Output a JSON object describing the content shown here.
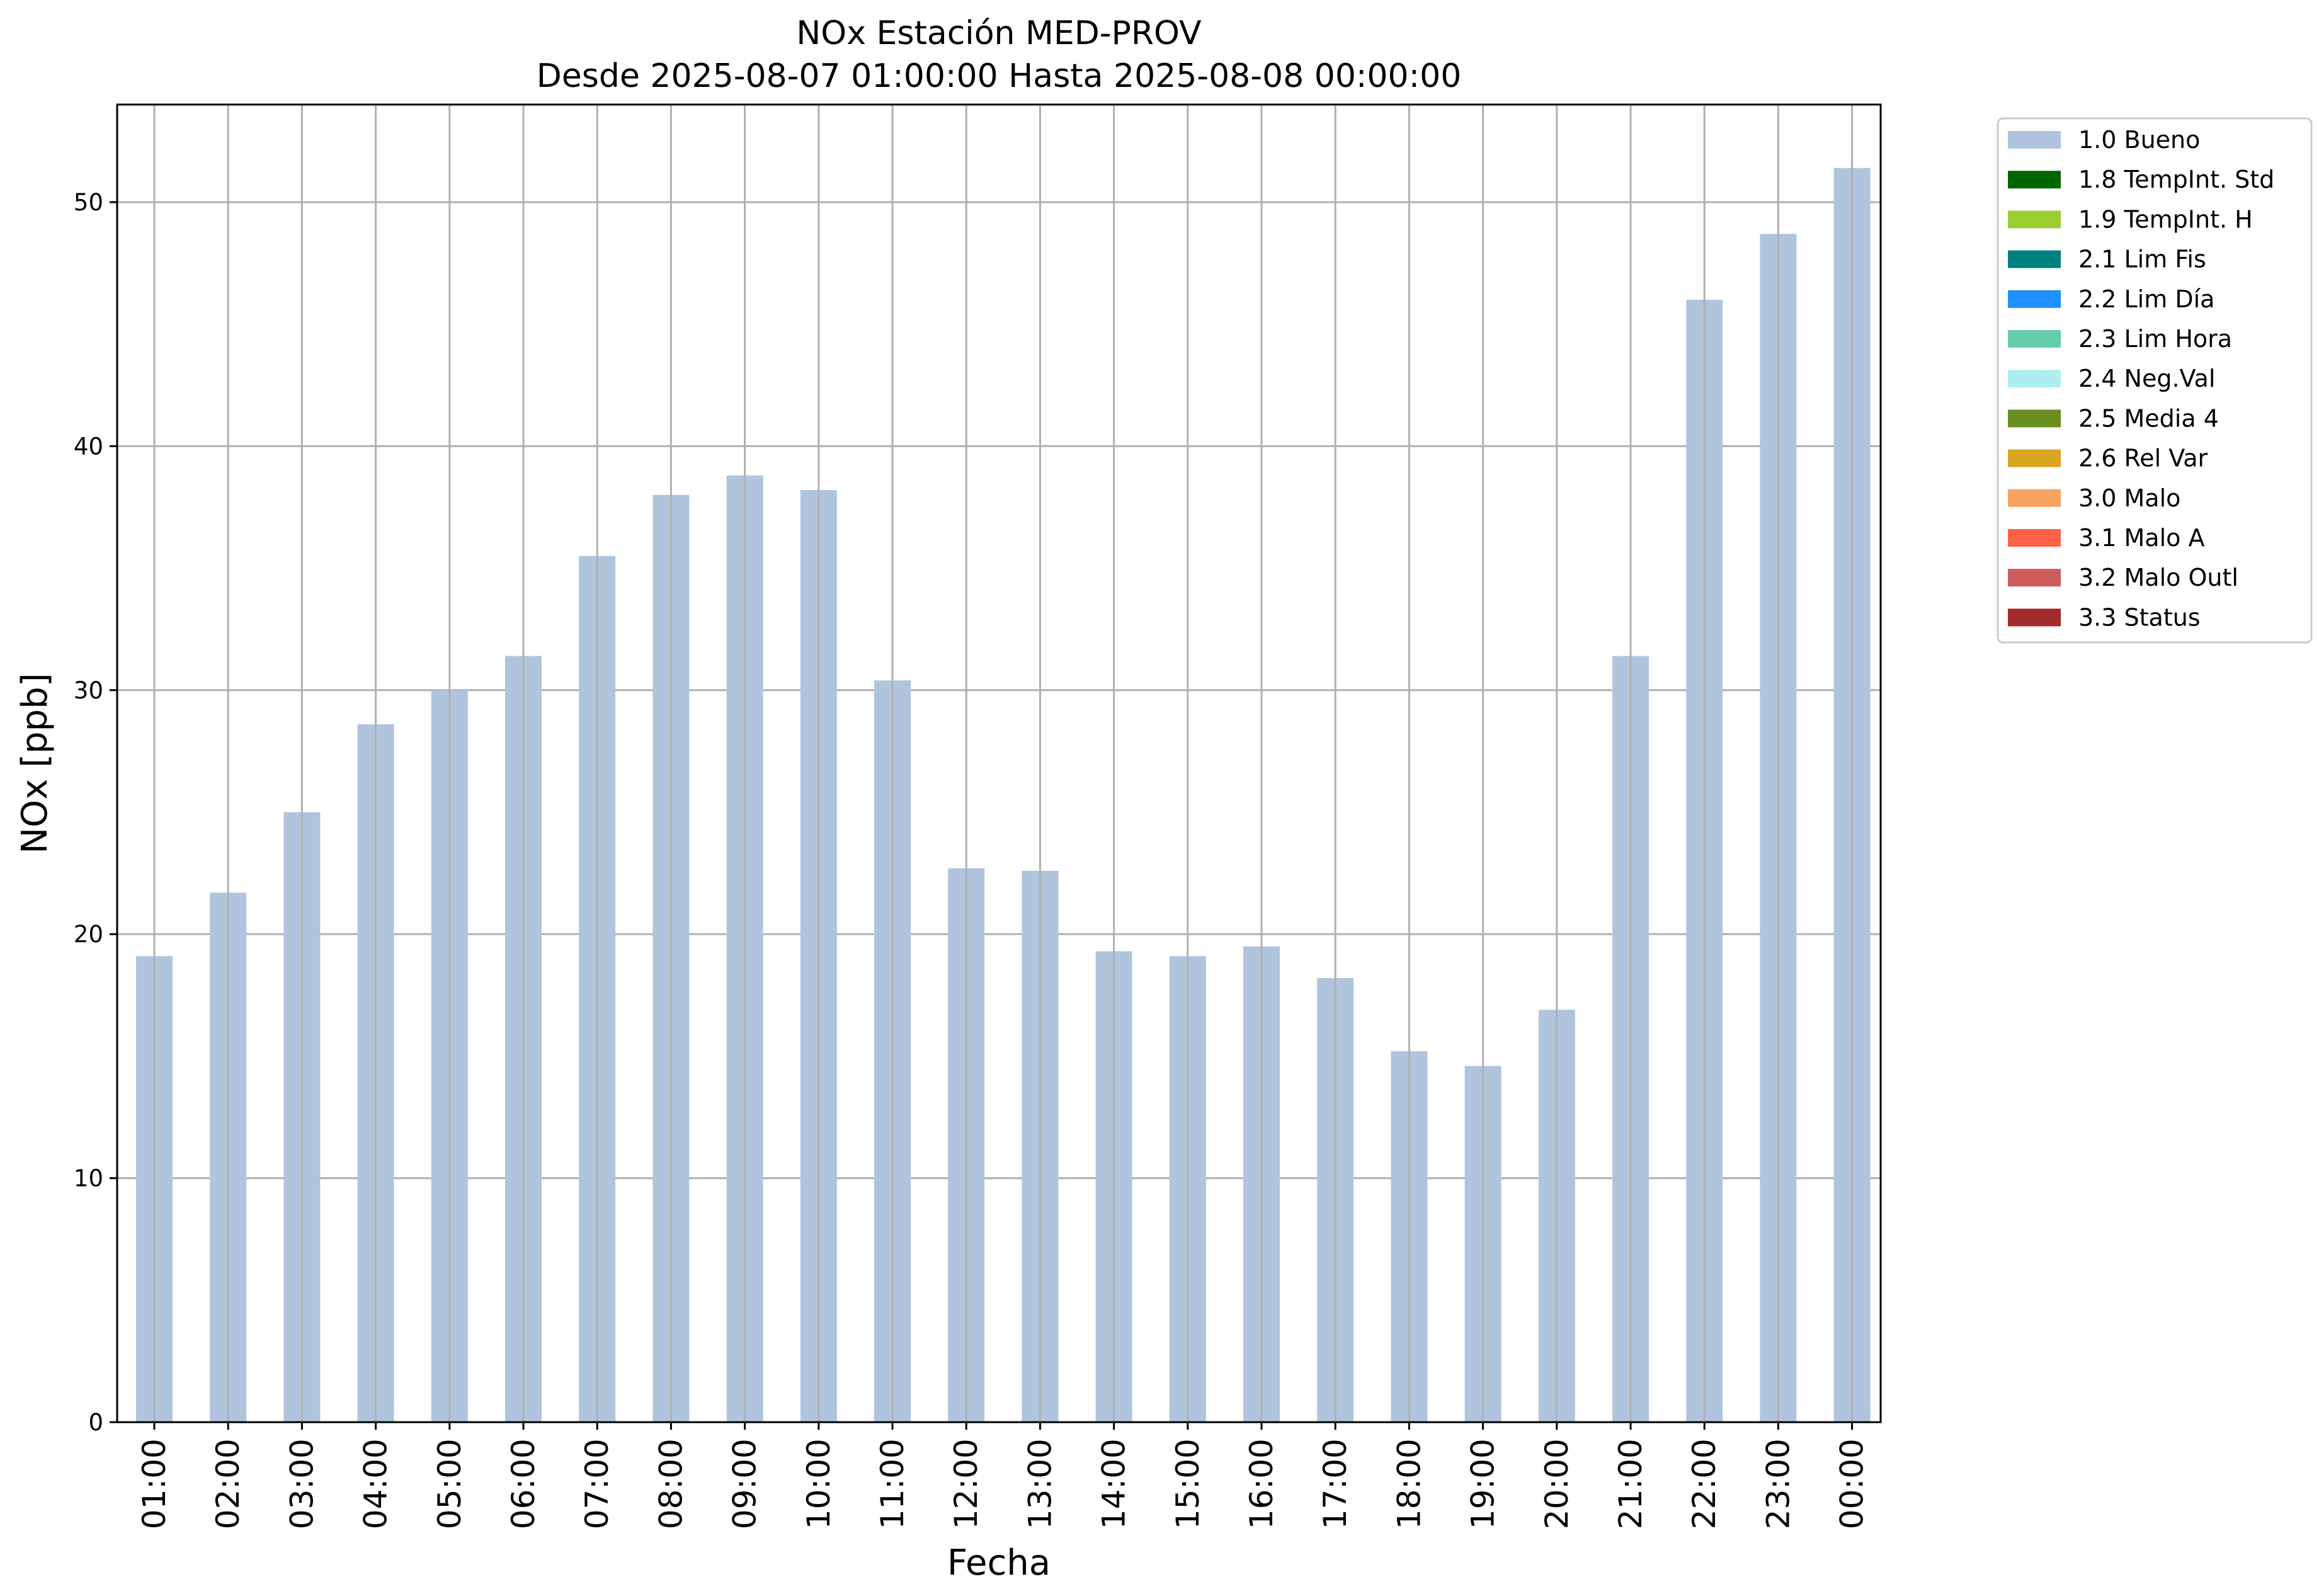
{
  "chart_data": {
    "type": "bar",
    "title": "NOx Estación MED-PROV",
    "subtitle": "Desde 2025-08-07 01:00:00 Hasta 2025-08-08 00:00:00",
    "xlabel": "Fecha",
    "ylabel": "NOx [ppb]",
    "ylim": [
      0,
      54
    ],
    "yticks": [
      0,
      10,
      20,
      30,
      40,
      50
    ],
    "grid": true,
    "legend_position": "outside-right-top",
    "categories": [
      "01:00",
      "02:00",
      "03:00",
      "04:00",
      "05:00",
      "06:00",
      "07:00",
      "08:00",
      "09:00",
      "10:00",
      "11:00",
      "12:00",
      "13:00",
      "14:00",
      "15:00",
      "16:00",
      "17:00",
      "18:00",
      "19:00",
      "20:00",
      "21:00",
      "22:00",
      "23:00",
      "00:00"
    ],
    "series": [
      {
        "name": "1.0 Bueno",
        "color": "#b0c4de",
        "values": [
          19.1,
          21.7,
          25.0,
          28.6,
          30.0,
          31.4,
          35.5,
          38.0,
          38.8,
          38.2,
          30.4,
          22.7,
          22.6,
          19.3,
          19.1,
          19.5,
          18.2,
          15.2,
          14.6,
          16.9,
          31.4,
          46.0,
          48.7,
          51.4
        ]
      }
    ],
    "legend": [
      {
        "label": "1.0 Bueno",
        "color": "#b0c4de"
      },
      {
        "label": "1.8 TempInt. Std",
        "color": "#006400"
      },
      {
        "label": "1.9 TempInt. H",
        "color": "#9acd32"
      },
      {
        "label": "2.1 Lim Fis",
        "color": "#008080"
      },
      {
        "label": "2.2 Lim Día",
        "color": "#1e90ff"
      },
      {
        "label": "2.3 Lim Hora",
        "color": "#66cdaa"
      },
      {
        "label": "2.4 Neg.Val",
        "color": "#afeeee"
      },
      {
        "label": "2.5 Media 4",
        "color": "#6b8e23"
      },
      {
        "label": "2.6 Rel Var",
        "color": "#daa520"
      },
      {
        "label": "3.0 Malo",
        "color": "#f4a460"
      },
      {
        "label": "3.1 Malo A",
        "color": "#ff6347"
      },
      {
        "label": "3.2 Malo Outl",
        "color": "#cd5c5c"
      },
      {
        "label": "3.3 Status",
        "color": "#a52a2a"
      }
    ]
  }
}
